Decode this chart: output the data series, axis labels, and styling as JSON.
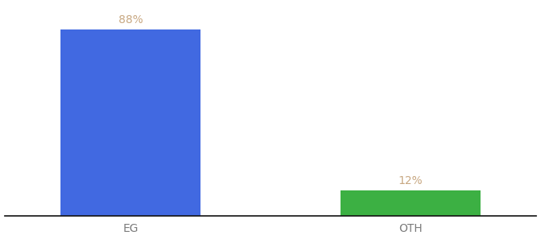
{
  "categories": [
    "EG",
    "OTH"
  ],
  "values": [
    88,
    12
  ],
  "bar_colors": [
    "#4169E1",
    "#3CB043"
  ],
  "label_color": "#c8a882",
  "background_color": "#ffffff",
  "ylim": [
    0,
    100
  ],
  "bar_width": 0.5,
  "value_labels": [
    "88%",
    "12%"
  ],
  "label_fontsize": 10,
  "tick_fontsize": 10,
  "tick_color": "#7a7a7a",
  "spine_color": "#111111",
  "label_yoffset": 2.0
}
